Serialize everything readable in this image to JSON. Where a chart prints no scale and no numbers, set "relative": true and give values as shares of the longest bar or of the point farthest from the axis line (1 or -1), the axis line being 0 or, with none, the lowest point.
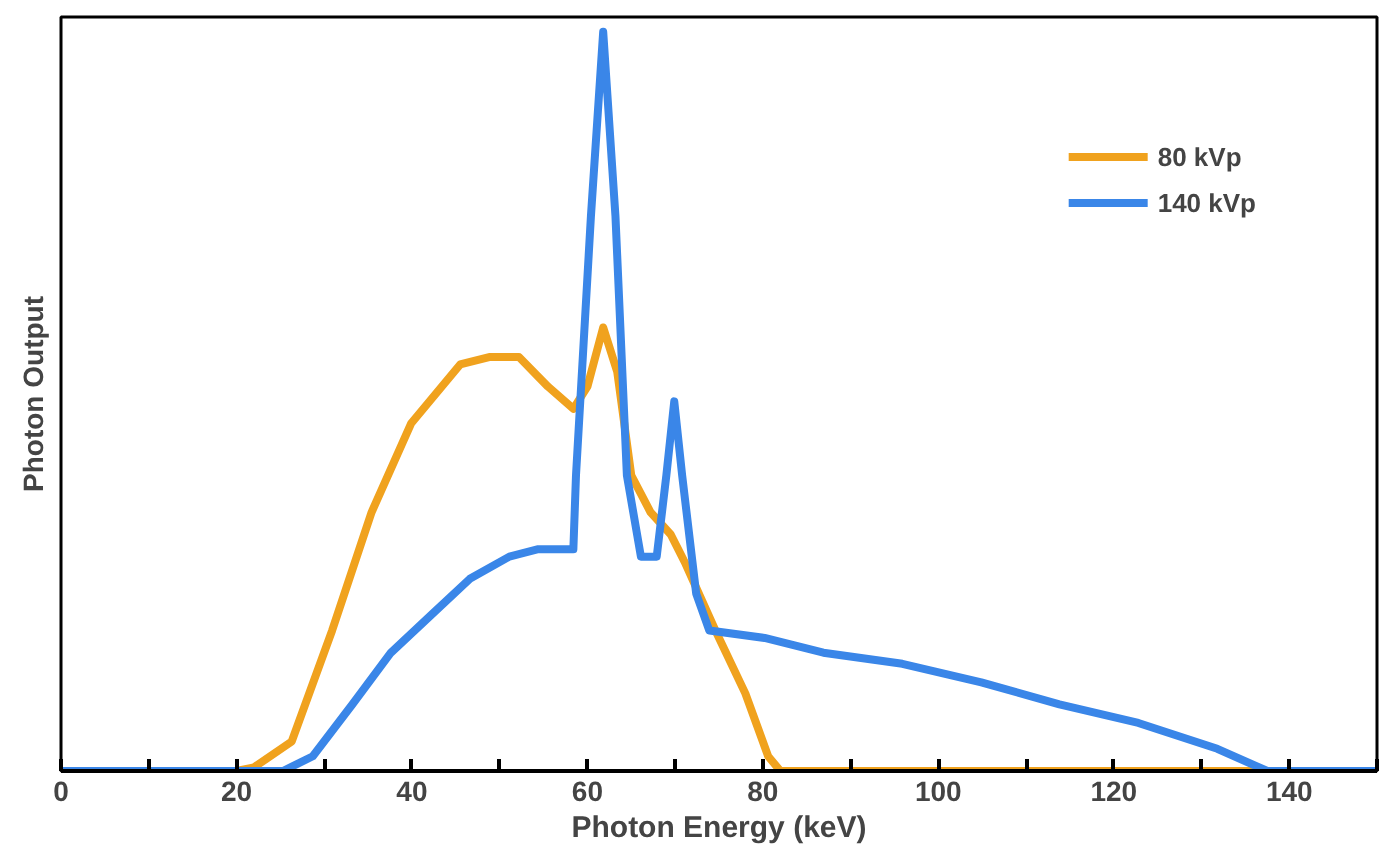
{
  "chart_data": {
    "type": "line",
    "xlabel": "Photon Energy (keV)",
    "ylabel": "Photon Output",
    "relative": true,
    "xlim": [
      0,
      150
    ],
    "xticks": [
      0,
      {
        "value": 10,
        "label": null
      },
      20,
      {
        "value": 30,
        "label": null
      },
      40,
      {
        "value": 50,
        "label": null
      },
      60,
      {
        "value": 70,
        "label": null
      },
      80,
      {
        "value": 90,
        "label": null
      },
      100,
      {
        "value": 110,
        "label": null
      },
      120,
      {
        "value": 130,
        "label": null
      },
      140,
      {
        "value": 150,
        "label": null
      }
    ],
    "legend": "top right",
    "grid": false,
    "line_style": "solid",
    "marker": "none",
    "series": [
      {
        "name": "80 kVp",
        "color": "#f0a21e",
        "x": [
          0,
          20,
          22,
          26.3,
          30.9,
          35.4,
          39.9,
          45.5,
          48.8,
          52.2,
          55.5,
          58.4,
          60,
          61.8,
          63.4,
          65,
          67.2,
          69.5,
          71.2,
          74.6,
          78,
          80.6,
          82,
          150
        ],
        "values": [
          0,
          0,
          0.005,
          0.04,
          0.19,
          0.35,
          0.47,
          0.55,
          0.56,
          0.56,
          0.52,
          0.49,
          0.52,
          0.6,
          0.54,
          0.4,
          0.35,
          0.32,
          0.28,
          0.19,
          0.105,
          0.02,
          0,
          0
        ]
      },
      {
        "name": "140 kVp",
        "color": "#3a86e8",
        "x": [
          0,
          25.3,
          28.7,
          33.2,
          37.6,
          42.1,
          46.6,
          51.1,
          54.4,
          58.4,
          58.7,
          60.4,
          61.8,
          63.2,
          64.5,
          66.1,
          67.9,
          69,
          69.9,
          70.8,
          72.4,
          73.9,
          80.2,
          86.9,
          95.9,
          104.9,
          113.8,
          122.8,
          131.8,
          137.5,
          150
        ],
        "values": [
          0,
          0,
          0.02,
          0.09,
          0.16,
          0.21,
          0.26,
          0.29,
          0.3,
          0.3,
          0.4,
          0.75,
          1,
          0.75,
          0.4,
          0.29,
          0.29,
          0.4,
          0.5,
          0.4,
          0.24,
          0.19,
          0.18,
          0.16,
          0.145,
          0.12,
          0.09,
          0.065,
          0.03,
          0,
          0
        ]
      }
    ]
  }
}
